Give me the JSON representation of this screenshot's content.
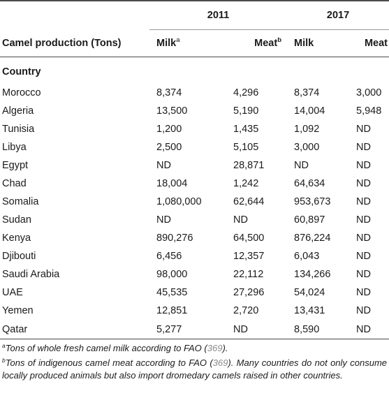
{
  "table": {
    "header": {
      "row_label": "Camel production (Tons)",
      "years": [
        "2011",
        "2017"
      ],
      "columns": [
        {
          "label": "Milk",
          "sup": "a"
        },
        {
          "label": "Meat",
          "sup": "b"
        },
        {
          "label": "Milk",
          "sup": ""
        },
        {
          "label": "Meat",
          "sup": ""
        }
      ]
    },
    "section_label": "Country",
    "rows": [
      {
        "country": "Morocco",
        "milk_2011": "8,374",
        "meat_2011": "4,296",
        "milk_2017": "8,374",
        "meat_2017": "3,000"
      },
      {
        "country": "Algeria",
        "milk_2011": "13,500",
        "meat_2011": "5,190",
        "milk_2017": "14,004",
        "meat_2017": "5,948"
      },
      {
        "country": "Tunisia",
        "milk_2011": "1,200",
        "meat_2011": "1,435",
        "milk_2017": "1,092",
        "meat_2017": "ND"
      },
      {
        "country": "Libya",
        "milk_2011": "2,500",
        "meat_2011": "5,105",
        "milk_2017": "3,000",
        "meat_2017": "ND"
      },
      {
        "country": "Egypt",
        "milk_2011": "ND",
        "meat_2011": "28,871",
        "milk_2017": "ND",
        "meat_2017": "ND"
      },
      {
        "country": "Chad",
        "milk_2011": "18,004",
        "meat_2011": "1,242",
        "milk_2017": "64,634",
        "meat_2017": "ND"
      },
      {
        "country": "Somalia",
        "milk_2011": "1,080,000",
        "meat_2011": "62,644",
        "milk_2017": "953,673",
        "meat_2017": "ND"
      },
      {
        "country": "Sudan",
        "milk_2011": "ND",
        "meat_2011": "ND",
        "milk_2017": "60,897",
        "meat_2017": "ND"
      },
      {
        "country": "Kenya",
        "milk_2011": "890,276",
        "meat_2011": "64,500",
        "milk_2017": "876,224",
        "meat_2017": "ND"
      },
      {
        "country": "Djibouti",
        "milk_2011": "6,456",
        "meat_2011": "12,357",
        "milk_2017": "6,043",
        "meat_2017": "ND"
      },
      {
        "country": "Saudi Arabia",
        "milk_2011": "98,000",
        "meat_2011": "22,112",
        "milk_2017": "134,266",
        "meat_2017": "ND"
      },
      {
        "country": "UAE",
        "milk_2011": "45,535",
        "meat_2011": "27,296",
        "milk_2017": "54,024",
        "meat_2017": "ND"
      },
      {
        "country": "Yemen",
        "milk_2011": "12,851",
        "meat_2011": "2,720",
        "milk_2017": "13,431",
        "meat_2017": "ND"
      },
      {
        "country": "Qatar",
        "milk_2011": "5,277",
        "meat_2011": "ND",
        "milk_2017": "8,590",
        "meat_2017": "ND"
      }
    ]
  },
  "footnotes": {
    "a": {
      "marker": "a",
      "text": "Tons of whole fresh camel milk according to FAO (",
      "ref": "369",
      "tail": ")."
    },
    "b": {
      "marker": "b",
      "text": "Tons of indigenous camel meat according to FAO (",
      "ref": "369",
      "tail": "). Many countries do not only consume locally produced animals but also import dromedary camels raised in other countries."
    }
  },
  "colors": {
    "reference_link": "#8a8a8a",
    "rule": "#4a4a4a"
  }
}
